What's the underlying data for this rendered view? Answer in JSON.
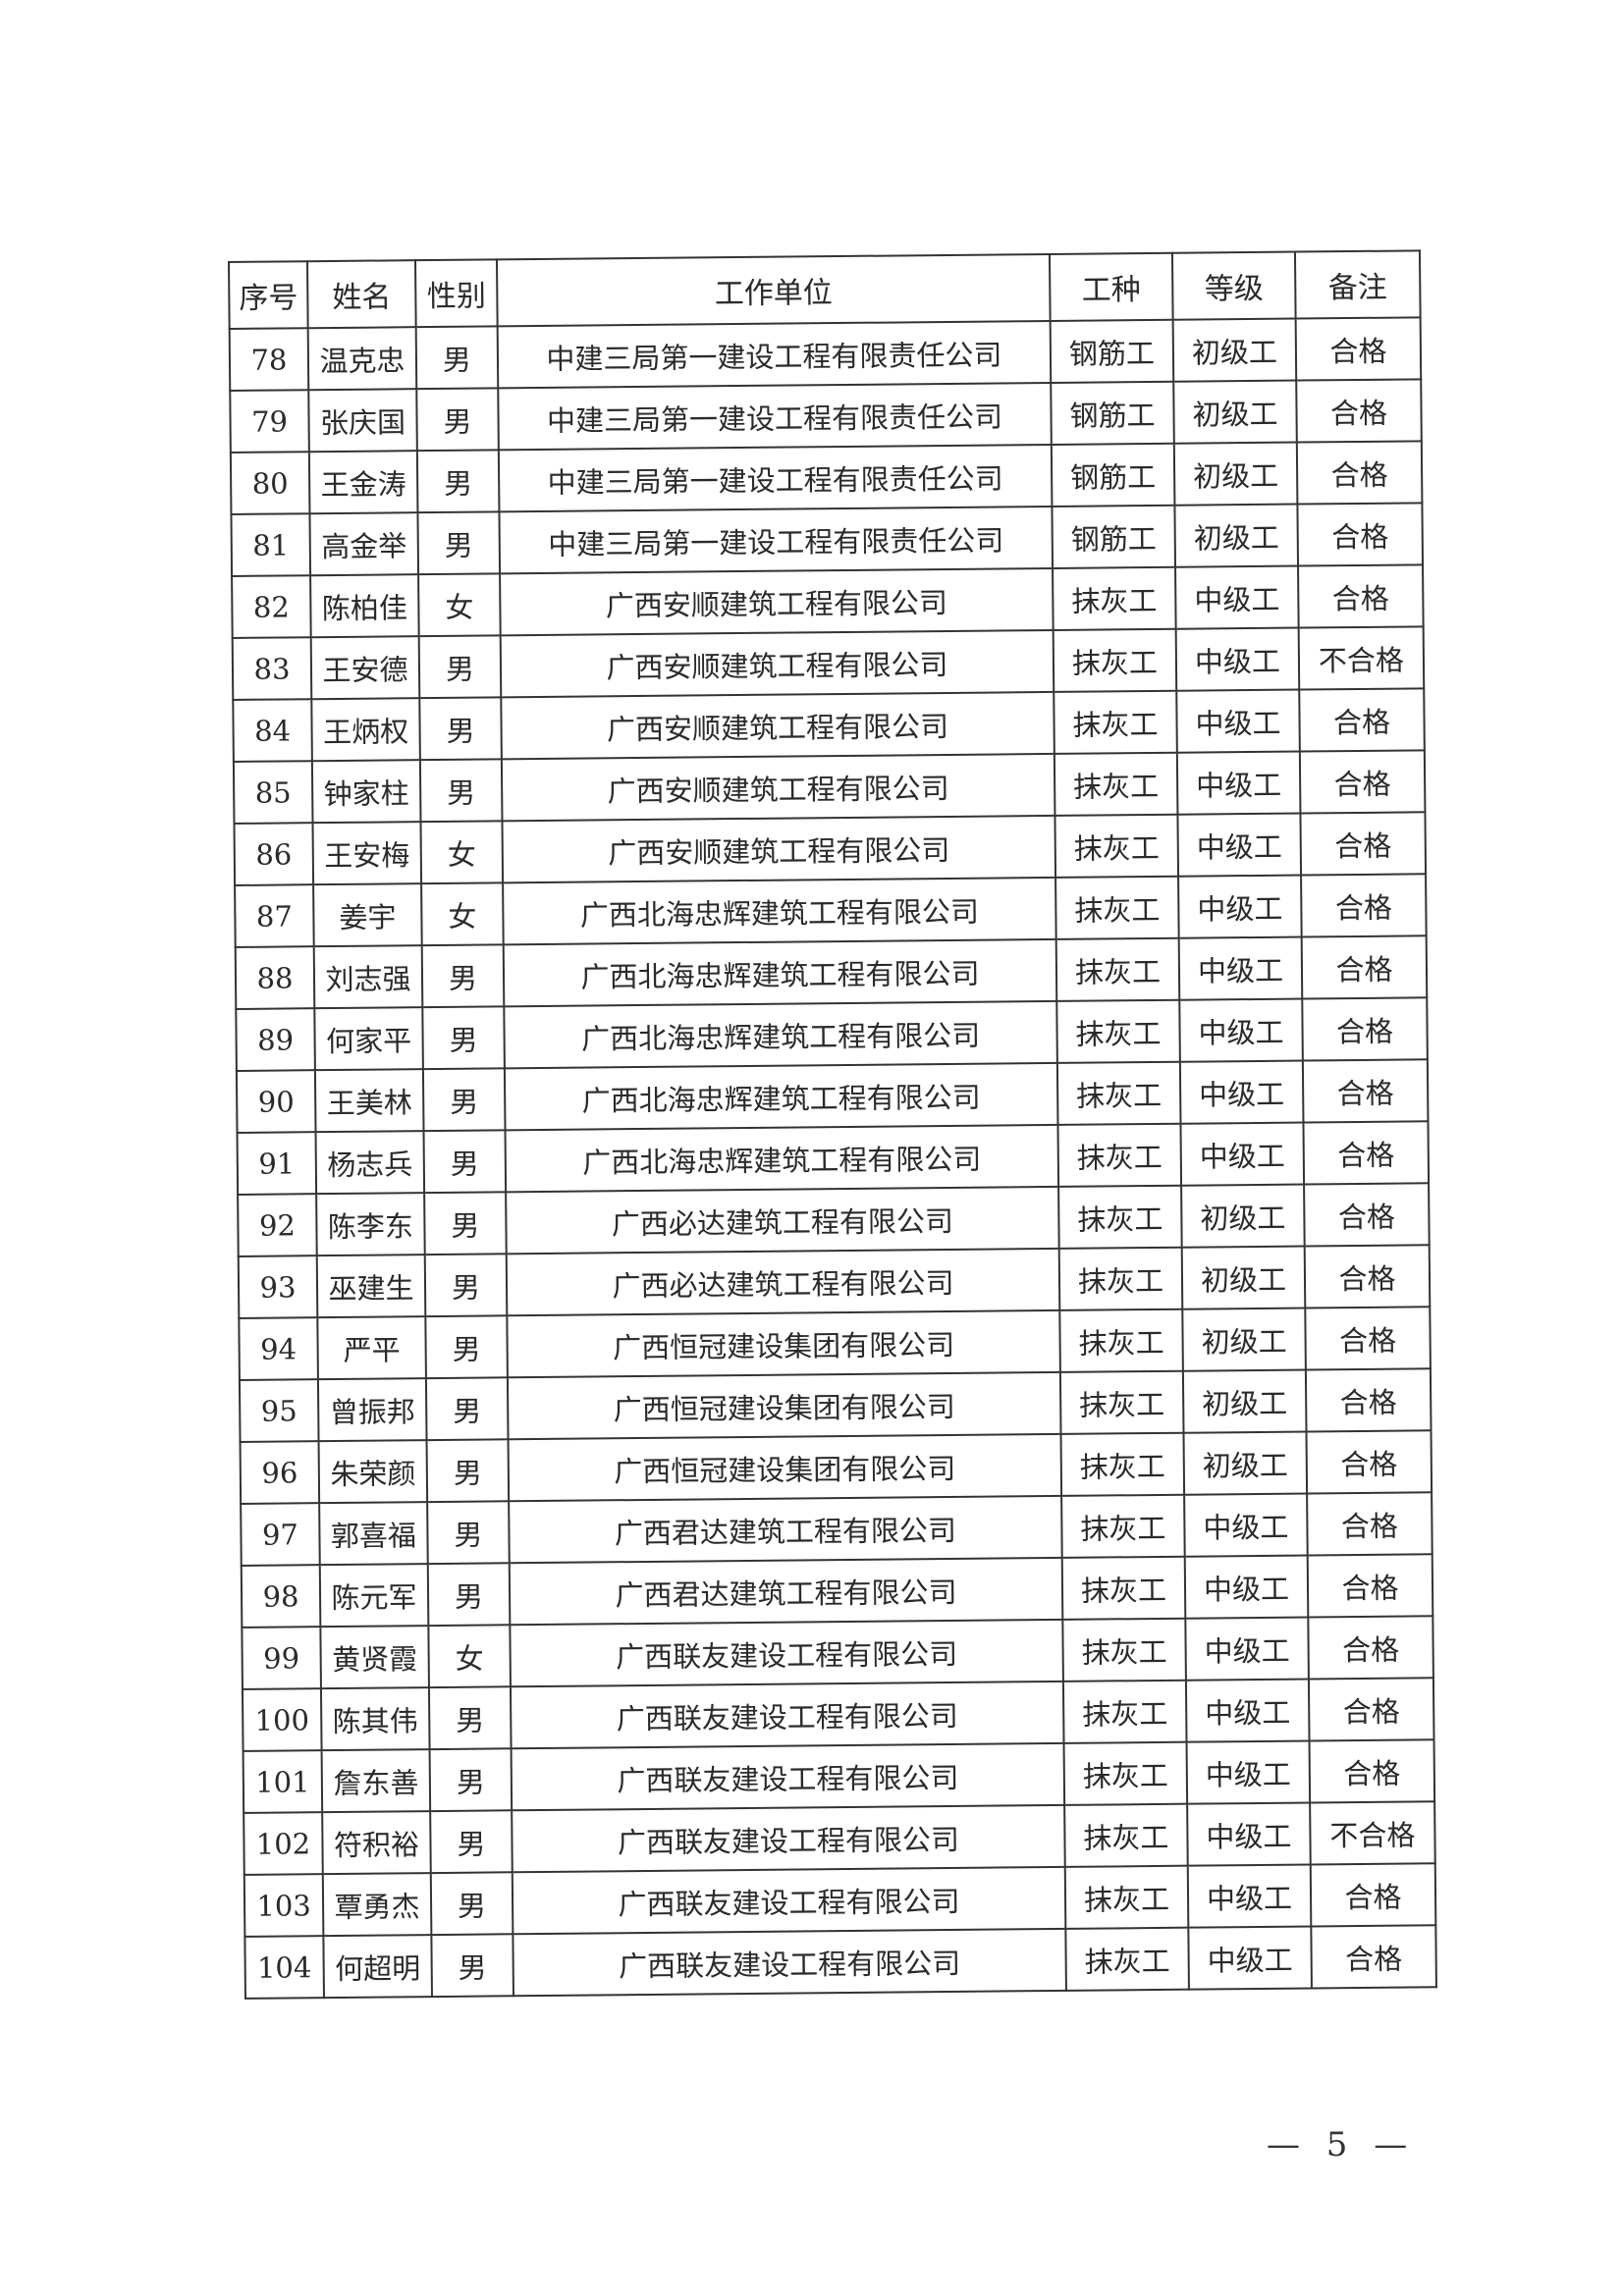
{
  "table": {
    "headers": [
      "序号",
      "姓名",
      "性别",
      "工作单位",
      "工种",
      "等级",
      "备注"
    ],
    "rows": [
      [
        "78",
        "温克忠",
        "男",
        "中建三局第一建设工程有限责任公司",
        "钢筋工",
        "初级工",
        "合格"
      ],
      [
        "79",
        "张庆国",
        "男",
        "中建三局第一建设工程有限责任公司",
        "钢筋工",
        "初级工",
        "合格"
      ],
      [
        "80",
        "王金涛",
        "男",
        "中建三局第一建设工程有限责任公司",
        "钢筋工",
        "初级工",
        "合格"
      ],
      [
        "81",
        "高金举",
        "男",
        "中建三局第一建设工程有限责任公司",
        "钢筋工",
        "初级工",
        "合格"
      ],
      [
        "82",
        "陈柏佳",
        "女",
        "广西安顺建筑工程有限公司",
        "抹灰工",
        "中级工",
        "合格"
      ],
      [
        "83",
        "王安德",
        "男",
        "广西安顺建筑工程有限公司",
        "抹灰工",
        "中级工",
        "不合格"
      ],
      [
        "84",
        "王炳权",
        "男",
        "广西安顺建筑工程有限公司",
        "抹灰工",
        "中级工",
        "合格"
      ],
      [
        "85",
        "钟家柱",
        "男",
        "广西安顺建筑工程有限公司",
        "抹灰工",
        "中级工",
        "合格"
      ],
      [
        "86",
        "王安梅",
        "女",
        "广西安顺建筑工程有限公司",
        "抹灰工",
        "中级工",
        "合格"
      ],
      [
        "87",
        "姜宇",
        "女",
        "广西北海忠辉建筑工程有限公司",
        "抹灰工",
        "中级工",
        "合格"
      ],
      [
        "88",
        "刘志强",
        "男",
        "广西北海忠辉建筑工程有限公司",
        "抹灰工",
        "中级工",
        "合格"
      ],
      [
        "89",
        "何家平",
        "男",
        "广西北海忠辉建筑工程有限公司",
        "抹灰工",
        "中级工",
        "合格"
      ],
      [
        "90",
        "王美林",
        "男",
        "广西北海忠辉建筑工程有限公司",
        "抹灰工",
        "中级工",
        "合格"
      ],
      [
        "91",
        "杨志兵",
        "男",
        "广西北海忠辉建筑工程有限公司",
        "抹灰工",
        "中级工",
        "合格"
      ],
      [
        "92",
        "陈李东",
        "男",
        "广西必达建筑工程有限公司",
        "抹灰工",
        "初级工",
        "合格"
      ],
      [
        "93",
        "巫建生",
        "男",
        "广西必达建筑工程有限公司",
        "抹灰工",
        "初级工",
        "合格"
      ],
      [
        "94",
        "严平",
        "男",
        "广西恒冠建设集团有限公司",
        "抹灰工",
        "初级工",
        "合格"
      ],
      [
        "95",
        "曾振邦",
        "男",
        "广西恒冠建设集团有限公司",
        "抹灰工",
        "初级工",
        "合格"
      ],
      [
        "96",
        "朱荣颜",
        "男",
        "广西恒冠建设集团有限公司",
        "抹灰工",
        "初级工",
        "合格"
      ],
      [
        "97",
        "郭喜福",
        "男",
        "广西君达建筑工程有限公司",
        "抹灰工",
        "中级工",
        "合格"
      ],
      [
        "98",
        "陈元军",
        "男",
        "广西君达建筑工程有限公司",
        "抹灰工",
        "中级工",
        "合格"
      ],
      [
        "99",
        "黄贤霞",
        "女",
        "广西联友建设工程有限公司",
        "抹灰工",
        "中级工",
        "合格"
      ],
      [
        "100",
        "陈其伟",
        "男",
        "广西联友建设工程有限公司",
        "抹灰工",
        "中级工",
        "合格"
      ],
      [
        "101",
        "詹东善",
        "男",
        "广西联友建设工程有限公司",
        "抹灰工",
        "中级工",
        "合格"
      ],
      [
        "102",
        "符积裕",
        "男",
        "广西联友建设工程有限公司",
        "抹灰工",
        "中级工",
        "不合格"
      ],
      [
        "103",
        "覃勇杰",
        "男",
        "广西联友建设工程有限公司",
        "抹灰工",
        "中级工",
        "合格"
      ],
      [
        "104",
        "何超明",
        "男",
        "广西联友建设工程有限公司",
        "抹灰工",
        "中级工",
        "合格"
      ]
    ]
  },
  "footer": {
    "page_number": "— 5 —"
  }
}
